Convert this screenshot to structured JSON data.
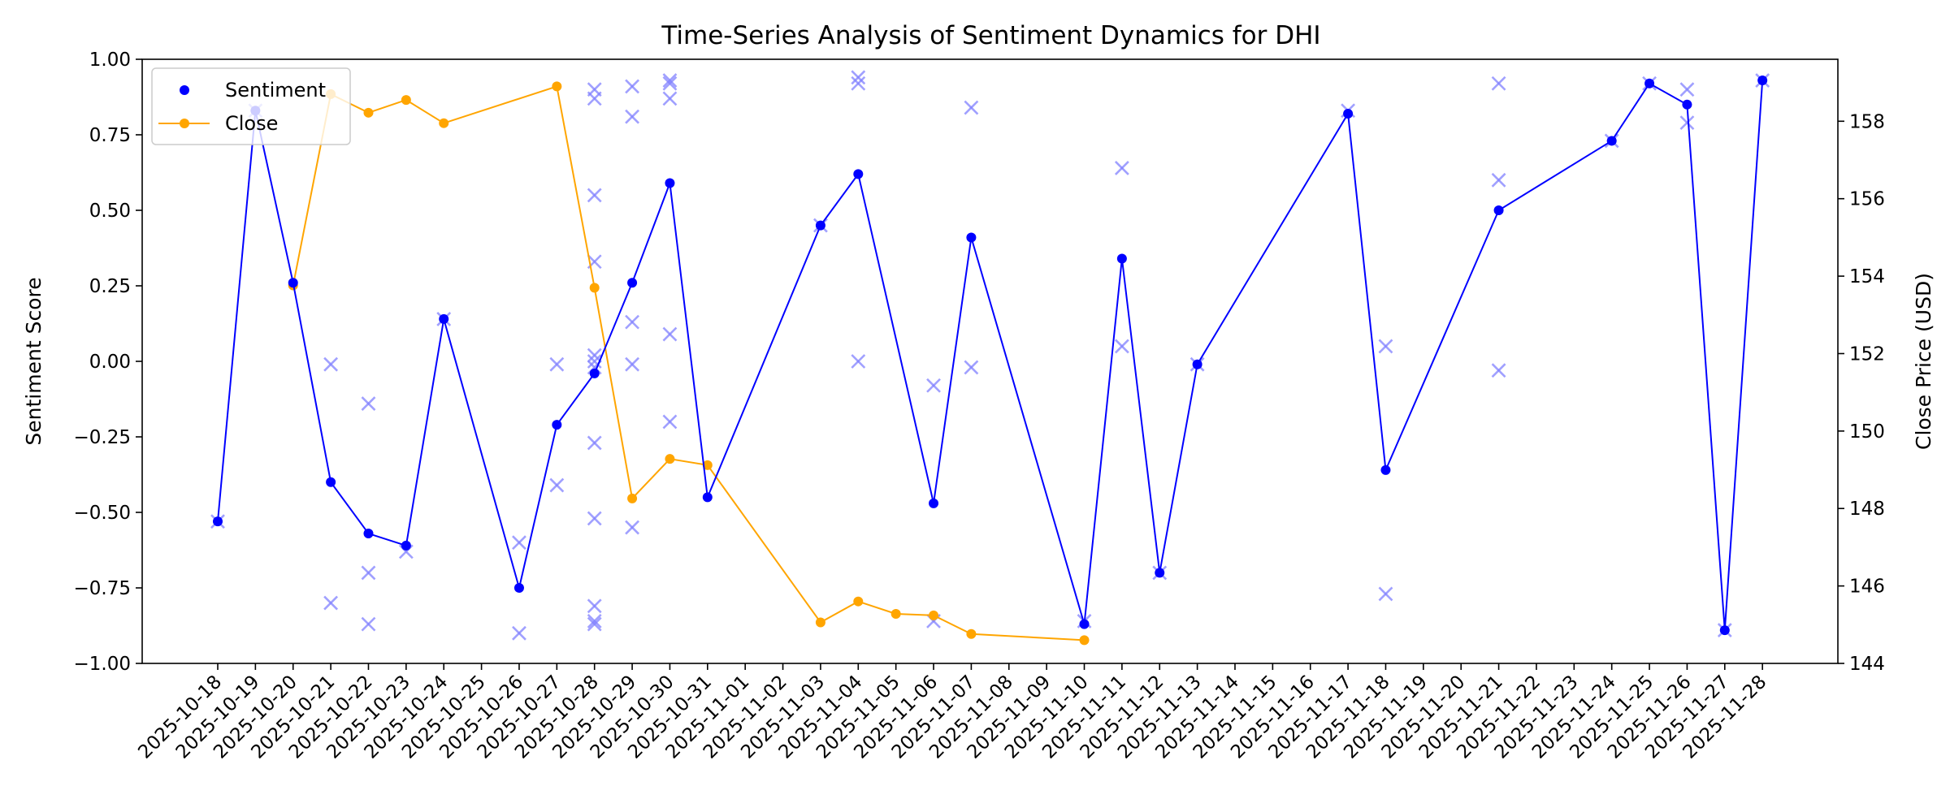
{
  "chart_data": {
    "type": "line",
    "title": "Time-Series Analysis of Sentiment Dynamics for DHI",
    "xlabel": "",
    "ylabel": "Sentiment Score",
    "y2label": "Close Price (USD)",
    "ylim": [
      -1.0,
      1.0
    ],
    "y2lim": [
      144.0,
      159.6
    ],
    "y_ticks": [
      "−1.00",
      "−0.75",
      "−0.50",
      "−0.25",
      "0.00",
      "0.25",
      "0.50",
      "0.75",
      "1.00"
    ],
    "y2_ticks": [
      "144",
      "146",
      "148",
      "150",
      "152",
      "154",
      "156",
      "158"
    ],
    "x_ticks": [
      "2025-10-18",
      "2025-10-19",
      "2025-10-20",
      "2025-10-21",
      "2025-10-22",
      "2025-10-23",
      "2025-10-24",
      "2025-10-25",
      "2025-10-26",
      "2025-10-27",
      "2025-10-28",
      "2025-10-29",
      "2025-10-30",
      "2025-10-31",
      "2025-11-01",
      "2025-11-02",
      "2025-11-03",
      "2025-11-04",
      "2025-11-05",
      "2025-11-06",
      "2025-11-07",
      "2025-11-08",
      "2025-11-09",
      "2025-11-10",
      "2025-11-11",
      "2025-11-12",
      "2025-11-13",
      "2025-11-14",
      "2025-11-15",
      "2025-11-16",
      "2025-11-17",
      "2025-11-18",
      "2025-11-19",
      "2025-11-20",
      "2025-11-21",
      "2025-11-22",
      "2025-11-23",
      "2025-11-24",
      "2025-11-25",
      "2025-11-26",
      "2025-11-27",
      "2025-11-28"
    ],
    "legend": {
      "placement": "top-left",
      "entries": [
        "Sentiment",
        "Close"
      ]
    },
    "colors": {
      "sentiment": "#0000ff",
      "close": "#ffa500",
      "raw": "#8080ff"
    },
    "series": [
      {
        "name": "Sentiment",
        "kind": "line-with-markers",
        "points": [
          [
            "2025-10-18",
            -0.53
          ],
          [
            "2025-10-19",
            0.83
          ],
          [
            "2025-10-20",
            0.26
          ],
          [
            "2025-10-21",
            -0.4
          ],
          [
            "2025-10-22",
            -0.57
          ],
          [
            "2025-10-23",
            -0.61
          ],
          [
            "2025-10-24",
            0.14
          ],
          [
            "2025-10-26",
            -0.75
          ],
          [
            "2025-10-27",
            -0.21
          ],
          [
            "2025-10-28",
            -0.04
          ],
          [
            "2025-10-29",
            0.26
          ],
          [
            "2025-10-30",
            0.59
          ],
          [
            "2025-10-31",
            -0.45
          ],
          [
            "2025-11-03",
            0.45
          ],
          [
            "2025-11-04",
            0.62
          ],
          [
            "2025-11-06",
            -0.47
          ],
          [
            "2025-11-07",
            0.41
          ],
          [
            "2025-11-10",
            -0.87
          ],
          [
            "2025-11-11",
            0.34
          ],
          [
            "2025-11-12",
            -0.7
          ],
          [
            "2025-11-13",
            -0.01
          ],
          [
            "2025-11-17",
            0.82
          ],
          [
            "2025-11-18",
            -0.36
          ],
          [
            "2025-11-21",
            0.5
          ],
          [
            "2025-11-24",
            0.73
          ],
          [
            "2025-11-25",
            0.92
          ],
          [
            "2025-11-26",
            0.85
          ],
          [
            "2025-11-27",
            -0.89
          ],
          [
            "2025-11-28",
            0.93
          ]
        ]
      },
      {
        "name": "Close",
        "kind": "line-with-markers",
        "axis": "right",
        "points": [
          [
            "2025-10-20",
            153.76
          ],
          [
            "2025-10-21",
            158.7
          ],
          [
            "2025-10-22",
            158.22
          ],
          [
            "2025-10-23",
            158.55
          ],
          [
            "2025-10-24",
            157.95
          ],
          [
            "2025-10-27",
            158.9
          ],
          [
            "2025-10-28",
            153.7
          ],
          [
            "2025-10-29",
            148.26
          ],
          [
            "2025-10-30",
            149.28
          ],
          [
            "2025-10-31",
            149.12
          ],
          [
            "2025-11-03",
            145.06
          ],
          [
            "2025-11-04",
            145.6
          ],
          [
            "2025-11-05",
            145.28
          ],
          [
            "2025-11-06",
            145.24
          ],
          [
            "2025-11-07",
            144.76
          ],
          [
            "2025-11-10",
            144.6
          ]
        ]
      },
      {
        "kind": "raw-sentiment-x-markers",
        "points": [
          [
            "2025-10-18",
            -0.53
          ],
          [
            "2025-10-19",
            0.83
          ],
          [
            "2025-10-21",
            -0.01
          ],
          [
            "2025-10-21",
            -0.8
          ],
          [
            "2025-10-22",
            -0.14
          ],
          [
            "2025-10-22",
            -0.7
          ],
          [
            "2025-10-22",
            -0.87
          ],
          [
            "2025-10-23",
            -0.63
          ],
          [
            "2025-10-24",
            0.14
          ],
          [
            "2025-10-26",
            -0.6
          ],
          [
            "2025-10-26",
            -0.9
          ],
          [
            "2025-10-27",
            -0.01
          ],
          [
            "2025-10-27",
            -0.41
          ],
          [
            "2025-10-28",
            0.9
          ],
          [
            "2025-10-28",
            0.87
          ],
          [
            "2025-10-28",
            0.55
          ],
          [
            "2025-10-28",
            0.33
          ],
          [
            "2025-10-28",
            0.02
          ],
          [
            "2025-10-28",
            0.0
          ],
          [
            "2025-10-28",
            -0.02
          ],
          [
            "2025-10-28",
            -0.27
          ],
          [
            "2025-10-28",
            -0.52
          ],
          [
            "2025-10-28",
            -0.81
          ],
          [
            "2025-10-28",
            -0.86
          ],
          [
            "2025-10-28",
            -0.87
          ],
          [
            "2025-10-29",
            0.91
          ],
          [
            "2025-10-29",
            0.81
          ],
          [
            "2025-10-29",
            0.13
          ],
          [
            "2025-10-29",
            -0.01
          ],
          [
            "2025-10-29",
            -0.55
          ],
          [
            "2025-10-30",
            0.93
          ],
          [
            "2025-10-30",
            0.92
          ],
          [
            "2025-10-30",
            0.87
          ],
          [
            "2025-10-30",
            0.09
          ],
          [
            "2025-10-30",
            -0.2
          ],
          [
            "2025-11-03",
            0.45
          ],
          [
            "2025-11-04",
            0.94
          ],
          [
            "2025-11-04",
            0.92
          ],
          [
            "2025-11-04",
            0.0
          ],
          [
            "2025-11-06",
            -0.08
          ],
          [
            "2025-11-06",
            -0.86
          ],
          [
            "2025-11-07",
            0.84
          ],
          [
            "2025-11-07",
            -0.02
          ],
          [
            "2025-11-10",
            -0.86
          ],
          [
            "2025-11-11",
            0.64
          ],
          [
            "2025-11-11",
            0.05
          ],
          [
            "2025-11-12",
            -0.7
          ],
          [
            "2025-11-13",
            -0.01
          ],
          [
            "2025-11-17",
            0.83
          ],
          [
            "2025-11-18",
            0.05
          ],
          [
            "2025-11-18",
            -0.77
          ],
          [
            "2025-11-21",
            0.92
          ],
          [
            "2025-11-21",
            0.6
          ],
          [
            "2025-11-21",
            -0.03
          ],
          [
            "2025-11-24",
            0.73
          ],
          [
            "2025-11-25",
            0.92
          ],
          [
            "2025-11-26",
            0.9
          ],
          [
            "2025-11-26",
            0.79
          ],
          [
            "2025-11-27",
            -0.89
          ],
          [
            "2025-11-28",
            0.93
          ]
        ]
      }
    ]
  }
}
